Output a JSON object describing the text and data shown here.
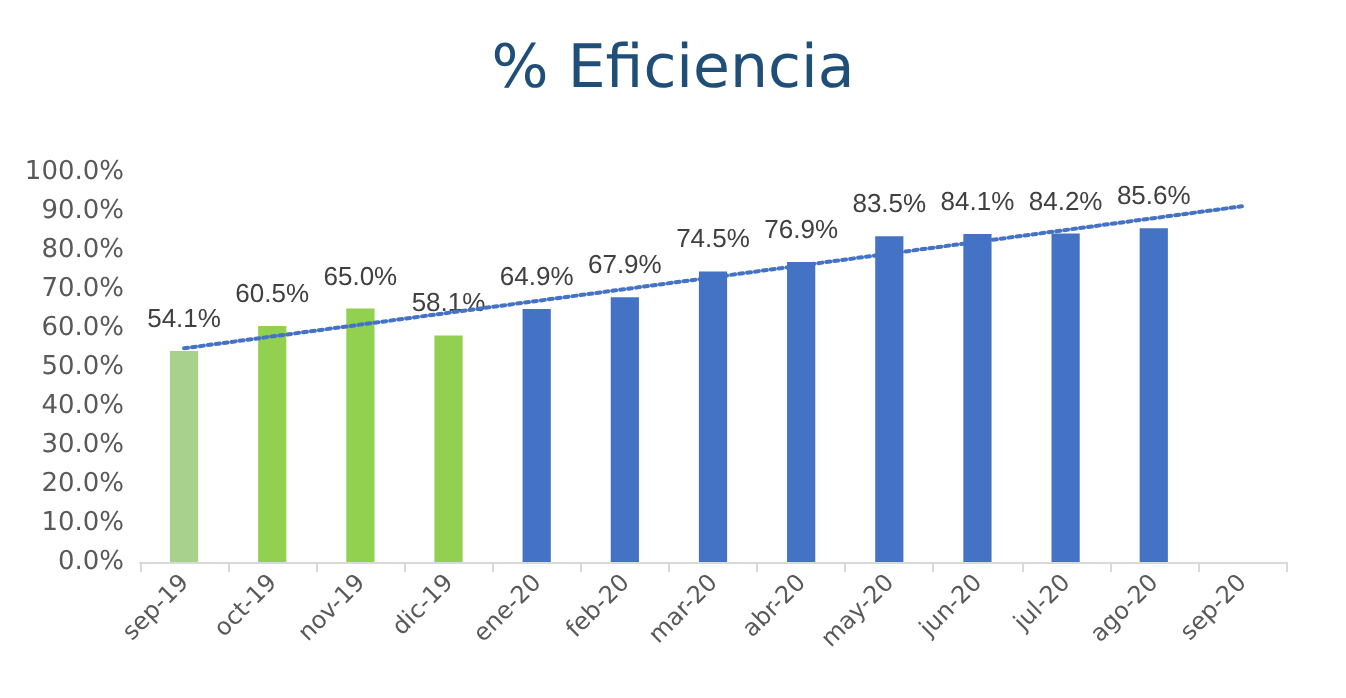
{
  "chart_data": {
    "type": "bar",
    "title": "% Eficiencia",
    "categories": [
      "sep-19",
      "oct-19",
      "nov-19",
      "dic-19",
      "ene-20",
      "feb-20",
      "mar-20",
      "abr-20",
      "may-20",
      "jun-20",
      "jul-20",
      "ago-20",
      "sep-20"
    ],
    "series": [
      {
        "values": [
          54.1,
          60.5,
          65.0,
          58.1,
          64.9,
          67.9,
          74.5,
          76.9,
          83.5,
          84.1,
          84.2,
          85.6,
          null
        ],
        "colors": [
          "#a9d18e",
          "#92d050",
          "#92d050",
          "#92d050",
          "#4472c4",
          "#4472c4",
          "#4472c4",
          "#4472c4",
          "#4472c4",
          "#4472c4",
          "#4472c4",
          "#4472c4",
          "#4472c4"
        ],
        "value_labels": [
          "54.1%",
          "60.5%",
          "65.0%",
          "58.1%",
          "64.9%",
          "67.9%",
          "74.5%",
          "76.9%",
          "83.5%",
          "84.1%",
          "84.2%",
          "85.6%",
          null
        ]
      },
      {
        "type": "line",
        "x": [
          "sep-19",
          "sep-20"
        ],
        "values": [
          54.8,
          91.2
        ],
        "color": "#4472c4",
        "line_style": "dotted",
        "marker": "none"
      }
    ],
    "ylim": [
      0,
      100
    ],
    "yticks": [
      {
        "value": 0,
        "label": "0.0%"
      },
      {
        "value": 10,
        "label": "10.0%"
      },
      {
        "value": 20,
        "label": "20.0%"
      },
      {
        "value": 30,
        "label": "30.0%"
      },
      {
        "value": 40,
        "label": "40.0%"
      },
      {
        "value": 50,
        "label": "50.0%"
      },
      {
        "value": 60,
        "label": "60.0%"
      },
      {
        "value": 70,
        "label": "70.0%"
      },
      {
        "value": 80,
        "label": "80.0%"
      },
      {
        "value": 90,
        "label": "90.0%"
      },
      {
        "value": 100,
        "label": "100.0%"
      }
    ],
    "grid": false
  }
}
